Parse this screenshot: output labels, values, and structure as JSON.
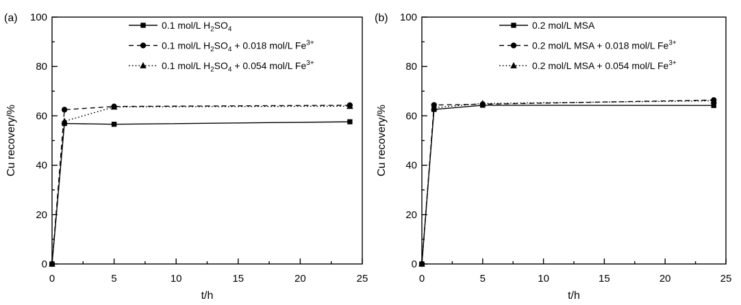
{
  "figure": {
    "background": "#ffffff",
    "ink_color": "#000000",
    "description": "Two-panel line chart of Cu recovery versus time for different lixiviant systems"
  },
  "chart_data": [
    {
      "type": "line",
      "panel_label": "(a)",
      "xlabel": "t/h",
      "ylabel": "Cu recovery/%",
      "xlim": [
        0,
        25
      ],
      "ylim": [
        0,
        100
      ],
      "x_major_ticks": [
        0,
        5,
        10,
        15,
        20,
        25
      ],
      "x_minor_ticks": [
        2.5,
        7.5,
        12.5,
        17.5,
        22.5
      ],
      "y_major_ticks": [
        0,
        20,
        40,
        60,
        80,
        100
      ],
      "y_minor_ticks": [
        10,
        30,
        50,
        70,
        90
      ],
      "grid": false,
      "legend_location": "upper center inside",
      "series": [
        {
          "name": "0.1 mol/L H₂SO₄",
          "line": "solid",
          "marker": "square",
          "color": "#000000",
          "label_segments": [
            {
              "text": "0.1 mol/L H"
            },
            {
              "text": "2",
              "style": "sub"
            },
            {
              "text": "SO"
            },
            {
              "text": "4",
              "style": "sub"
            }
          ],
          "points": [
            [
              0,
              0
            ],
            [
              1,
              56.9
            ],
            [
              5,
              56.6
            ],
            [
              24,
              57.6
            ]
          ]
        },
        {
          "name": "0.1 mol/L H₂SO₄ + 0.018 mol/L Fe³⁺",
          "line": "dashed",
          "marker": "circle",
          "color": "#000000",
          "label_segments": [
            {
              "text": "0.1 mol/L H"
            },
            {
              "text": "2",
              "style": "sub"
            },
            {
              "text": "SO"
            },
            {
              "text": "4",
              "style": "sub"
            },
            {
              "text": " + 0.018 mol/L Fe"
            },
            {
              "text": "3+",
              "style": "sup"
            }
          ],
          "points": [
            [
              0,
              0
            ],
            [
              1,
              62.5
            ],
            [
              5,
              63.8
            ],
            [
              24,
              64.3
            ]
          ]
        },
        {
          "name": "0.1 mol/L H₂SO₄ + 0.054 mol/L Fe³⁺",
          "line": "dotted",
          "marker": "triangle",
          "color": "#000000",
          "label_segments": [
            {
              "text": "0.1 mol/L H"
            },
            {
              "text": "2",
              "style": "sub"
            },
            {
              "text": "SO"
            },
            {
              "text": "4",
              "style": "sub"
            },
            {
              "text": " + 0.054 mol/L Fe"
            },
            {
              "text": "3+",
              "style": "sup"
            }
          ],
          "points": [
            [
              0,
              0
            ],
            [
              1,
              57.8
            ],
            [
              5,
              63.6
            ],
            [
              24,
              63.9
            ]
          ]
        }
      ]
    },
    {
      "type": "line",
      "panel_label": "(b)",
      "xlabel": "t/h",
      "ylabel": "Cu recovery/%",
      "xlim": [
        0,
        25
      ],
      "ylim": [
        0,
        100
      ],
      "x_major_ticks": [
        0,
        5,
        10,
        15,
        20,
        25
      ],
      "x_minor_ticks": [
        2.5,
        7.5,
        12.5,
        17.5,
        22.5
      ],
      "y_major_ticks": [
        0,
        20,
        40,
        60,
        80,
        100
      ],
      "y_minor_ticks": [
        10,
        30,
        50,
        70,
        90
      ],
      "grid": false,
      "legend_location": "upper center inside",
      "series": [
        {
          "name": "0.2 mol/L MSA",
          "line": "solid",
          "marker": "square",
          "color": "#000000",
          "label_segments": [
            {
              "text": "0.2 mol/L MSA"
            }
          ],
          "points": [
            [
              0,
              0
            ],
            [
              1,
              62.6
            ],
            [
              5,
              64.3
            ],
            [
              24,
              64.2
            ]
          ]
        },
        {
          "name": "0.2 mol/L MSA + 0.018 mol/L Fe³⁺",
          "line": "dashed",
          "marker": "circle",
          "color": "#000000",
          "label_segments": [
            {
              "text": "0.2 mol/L MSA + 0.018 mol/L Fe"
            },
            {
              "text": "3+",
              "style": "sup"
            }
          ],
          "points": [
            [
              0,
              0
            ],
            [
              1,
              64.4
            ],
            [
              5,
              64.7
            ],
            [
              24,
              66.4
            ]
          ]
        },
        {
          "name": "0.2 mol/L MSA + 0.054 mol/L Fe³⁺",
          "line": "dotted",
          "marker": "triangle",
          "color": "#000000",
          "label_segments": [
            {
              "text": "0.2 mol/L MSA + 0.054 mol/L Fe"
            },
            {
              "text": "3+",
              "style": "sup"
            }
          ],
          "points": [
            [
              0,
              0
            ],
            [
              1,
              63.3
            ],
            [
              5,
              65.0
            ],
            [
              24,
              66.1
            ]
          ]
        }
      ]
    }
  ]
}
